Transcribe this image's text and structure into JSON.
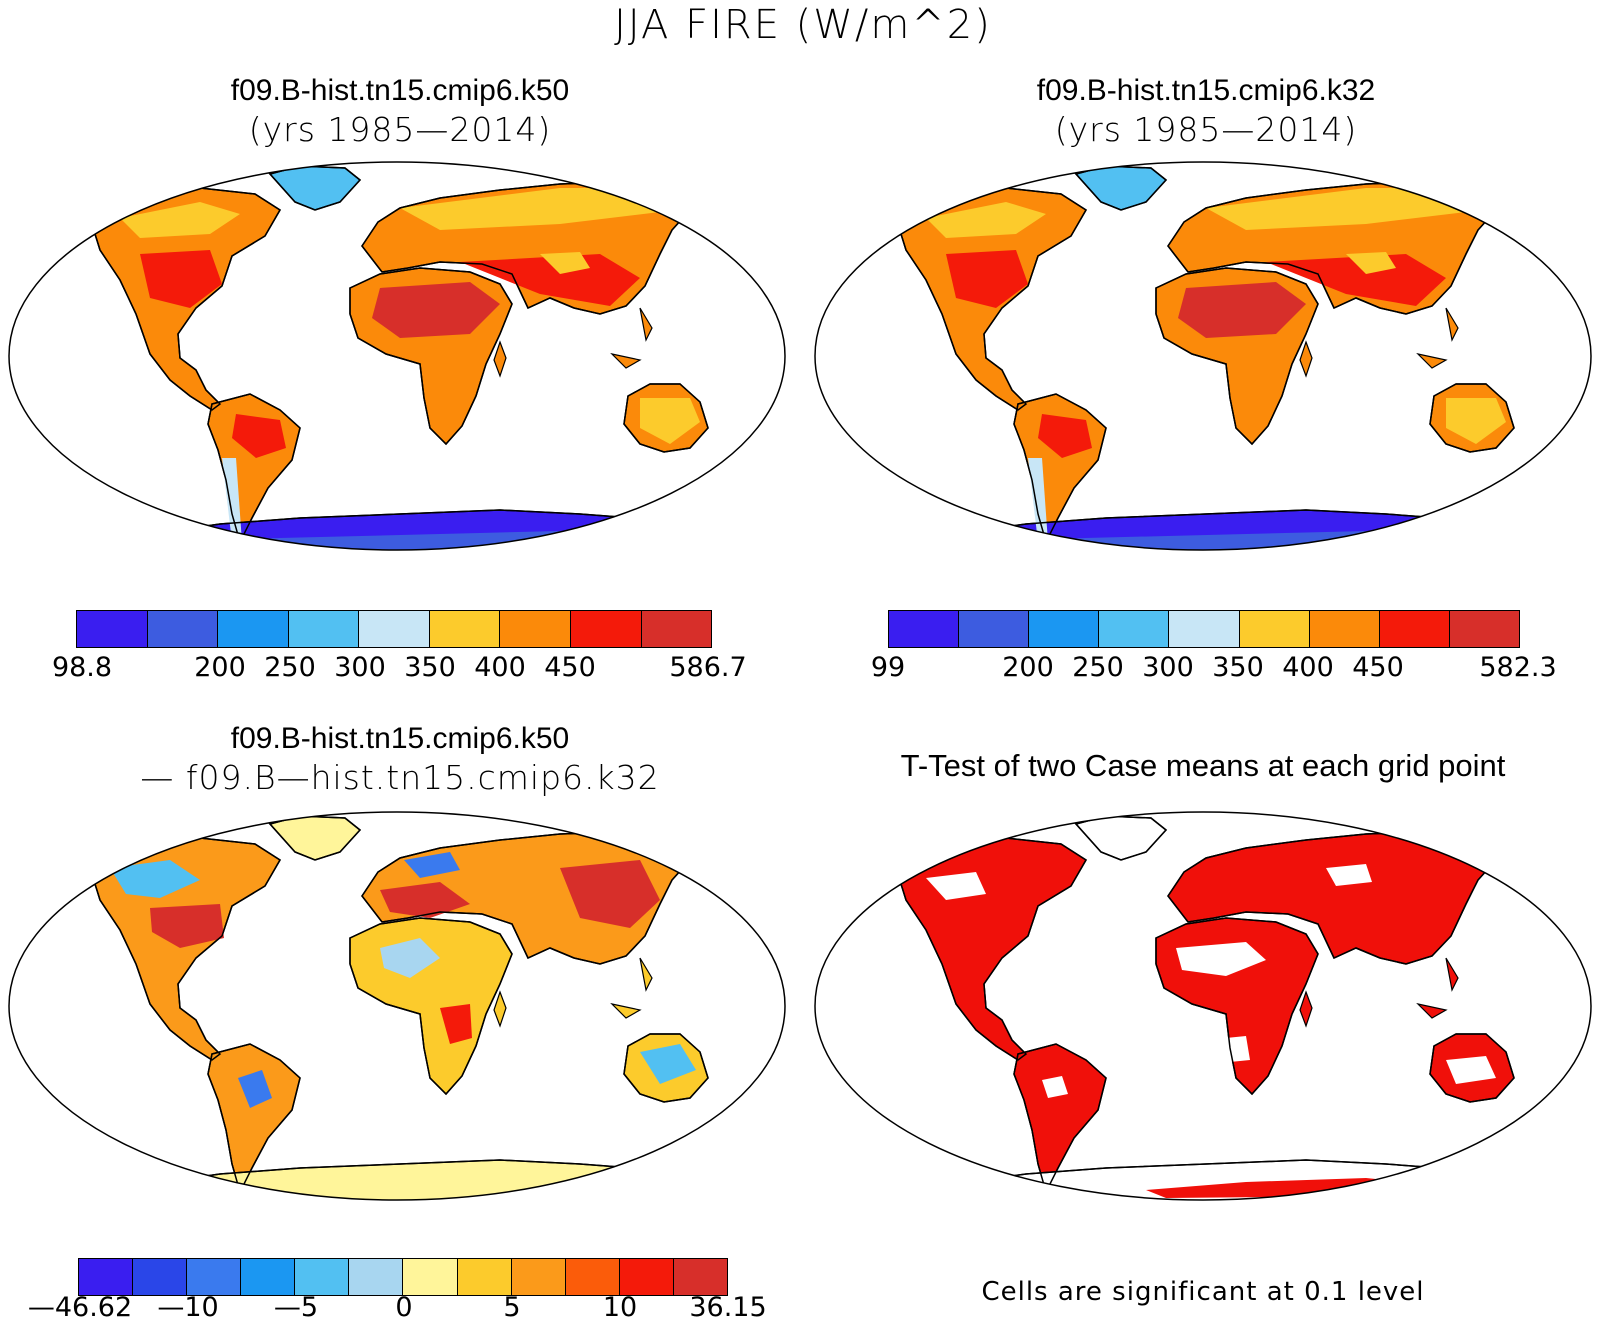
{
  "title": "JJA FIRE (W/m^2)",
  "panels": {
    "top_left": {
      "title_line1": "f09.B-hist.tn15.cmip6.k50",
      "title_line2": "(yrs 1985—2014)",
      "colorbar": {
        "colors": [
          "#3a1ef0",
          "#3d5ce0",
          "#1b97f2",
          "#52c0f2",
          "#c8e6f6",
          "#fccb2c",
          "#fb8a0a",
          "#f41a0a",
          "#d72f2a"
        ],
        "tick_labels": [
          "98.8",
          "200",
          "250",
          "300",
          "350",
          "400",
          "450",
          "586.7"
        ]
      }
    },
    "top_right": {
      "title_line1": "f09.B-hist.tn15.cmip6.k32",
      "title_line2": "(yrs 1985—2014)",
      "colorbar": {
        "colors": [
          "#3a1ef0",
          "#3d5ce0",
          "#1b97f2",
          "#52c0f2",
          "#c8e6f6",
          "#fccb2c",
          "#fb8a0a",
          "#f41a0a",
          "#d72f2a"
        ],
        "tick_labels": [
          "99",
          "200",
          "250",
          "300",
          "350",
          "400",
          "450",
          "582.3"
        ]
      }
    },
    "bottom_left": {
      "title_line1": "f09.B-hist.tn15.cmip6.k50",
      "title_line2": "— f09.B—hist.tn15.cmip6.k32",
      "colorbar": {
        "colors": [
          "#3a1ef0",
          "#2a46e8",
          "#3a7aee",
          "#1b97f2",
          "#52c0f2",
          "#a8d6f0",
          "#fff59a",
          "#fccb2c",
          "#fb9a1a",
          "#fb5c0a",
          "#f41a0a",
          "#d72f2a"
        ],
        "tick_labels": [
          "—46.62",
          "—10",
          "—5",
          "0",
          "5",
          "10",
          "36.15"
        ]
      }
    },
    "bottom_right": {
      "title": "T-Test of two Case means at each grid point",
      "note": "Cells are significant at 0.1 level",
      "significance_color": "#f0100a"
    }
  }
}
